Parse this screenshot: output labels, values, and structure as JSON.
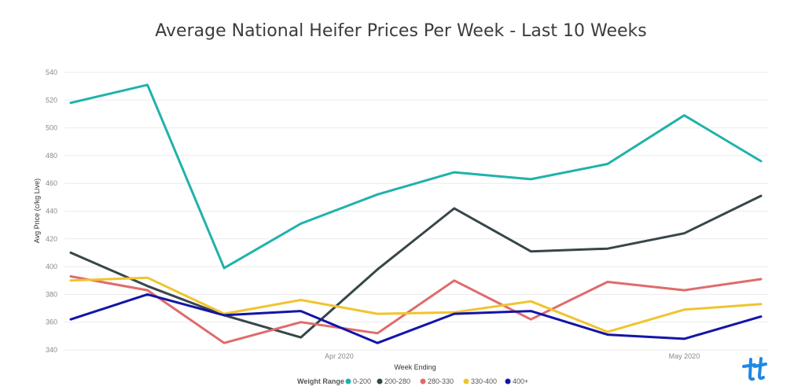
{
  "chart_data": {
    "type": "line",
    "title": "Average National Heifer Prices Per Week - Last 10 Weeks",
    "xlabel": "Week Ending",
    "ylabel": "Avg Price (c/kg Live)",
    "ylim": [
      340,
      540
    ],
    "y_ticks": [
      340,
      360,
      380,
      400,
      420,
      440,
      460,
      480,
      500,
      520,
      540
    ],
    "x_tick_labels": [
      {
        "label": "Apr 2020",
        "at_week": 4.5
      },
      {
        "label": "May 2020",
        "at_week": 9.0
      }
    ],
    "x": [
      1,
      2,
      3,
      4,
      5,
      6,
      7,
      8,
      9,
      10
    ],
    "grid": true,
    "legend_title": "Weight Range",
    "legend_position": "bottom",
    "series": [
      {
        "name": "0-200",
        "color": "#20b2aa",
        "values": [
          518,
          531,
          399,
          431,
          452,
          468,
          463,
          474,
          509,
          476
        ]
      },
      {
        "name": "200-280",
        "color": "#374649",
        "values": [
          410,
          386,
          365,
          349,
          398,
          442,
          411,
          413,
          424,
          451
        ]
      },
      {
        "name": "280-330",
        "color": "#e06b6b",
        "values": [
          393,
          383,
          345,
          360,
          352,
          390,
          362,
          389,
          383,
          391
        ]
      },
      {
        "name": "330-400",
        "color": "#f0c42e",
        "values": [
          390,
          392,
          366,
          376,
          366,
          367,
          375,
          353,
          369,
          373
        ]
      },
      {
        "name": "400+",
        "color": "#1414a8",
        "values": [
          362,
          380,
          365,
          368,
          345,
          366,
          368,
          351,
          348,
          364
        ]
      }
    ]
  },
  "logo": {
    "icon": "tt-logo-icon",
    "color": "#1e88e5"
  }
}
